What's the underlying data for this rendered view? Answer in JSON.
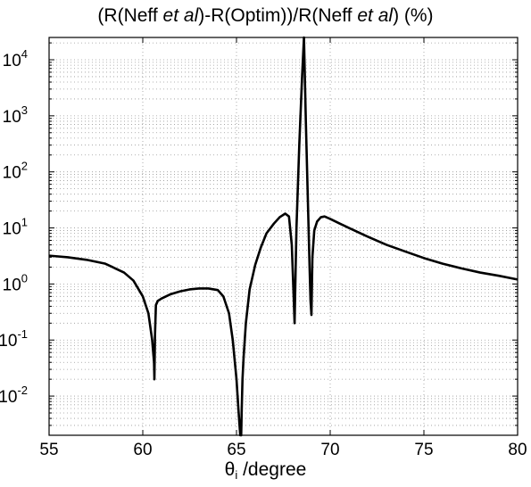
{
  "chart_data": {
    "type": "line",
    "title": {
      "open": "(R(Neff ",
      "italic1": "et al",
      "middle": ")-R(Optim))/R(Neff ",
      "italic2": "et al",
      "close": ") (%)"
    },
    "xlabel": {
      "symbol": "θ",
      "subscript": "i",
      "unit": " /degree"
    },
    "ylabel": "",
    "xlim": [
      55,
      80
    ],
    "ylim": [
      0.002,
      25000
    ],
    "yscale": "log",
    "grid": true,
    "x_ticks": [
      55,
      60,
      65,
      70,
      75,
      80
    ],
    "x_tick_labels": [
      "55",
      "60",
      "65",
      "70",
      "75",
      "80"
    ],
    "y_ticks": [
      {
        "value": 0.01,
        "base": "10",
        "exp": "-2"
      },
      {
        "value": 0.1,
        "base": "10",
        "exp": "-1"
      },
      {
        "value": 1,
        "base": "10",
        "exp": "0"
      },
      {
        "value": 10,
        "base": "10",
        "exp": "1"
      },
      {
        "value": 100,
        "base": "10",
        "exp": "2"
      },
      {
        "value": 1000,
        "base": "10",
        "exp": "3"
      },
      {
        "value": 10000,
        "base": "10",
        "exp": "4"
      }
    ],
    "series": [
      {
        "color": "#000000",
        "x": [
          55.0,
          56.0,
          57.0,
          58.0,
          59.0,
          59.5,
          60.0,
          60.3,
          60.5,
          60.6,
          60.62,
          60.65,
          60.7,
          60.8,
          61.0,
          61.5,
          62.0,
          62.5,
          63.0,
          63.5,
          64.0,
          64.3,
          64.6,
          64.8,
          65.0,
          65.1,
          65.2,
          65.25,
          65.28,
          65.32,
          65.38,
          65.5,
          65.7,
          66.0,
          66.3,
          66.6,
          67.0,
          67.3,
          67.6,
          67.8,
          67.95,
          68.05,
          68.1,
          68.15,
          68.2,
          68.35,
          68.5,
          68.6,
          68.7,
          68.8,
          68.9,
          68.95,
          69.0,
          69.05,
          69.15,
          69.3,
          69.5,
          69.7,
          70.0,
          70.5,
          71.0,
          72.0,
          73.0,
          74.0,
          75.0,
          76.0,
          77.0,
          78.0,
          79.0,
          80.0
        ],
        "y": [
          3.2,
          3.0,
          2.7,
          2.3,
          1.6,
          1.15,
          0.6,
          0.3,
          0.1,
          0.04,
          0.02,
          0.12,
          0.42,
          0.5,
          0.55,
          0.66,
          0.74,
          0.8,
          0.83,
          0.83,
          0.78,
          0.6,
          0.3,
          0.1,
          0.02,
          0.006,
          0.002,
          0.002,
          0.006,
          0.02,
          0.05,
          0.2,
          0.8,
          2.2,
          4.5,
          8.0,
          12.0,
          15.5,
          18.0,
          16.0,
          5.0,
          0.6,
          0.2,
          1.5,
          10.0,
          300,
          5000,
          25000,
          800,
          40,
          2.0,
          0.5,
          0.28,
          3.0,
          9.0,
          13.0,
          15.5,
          16.0,
          14.5,
          12.0,
          10.0,
          7.0,
          5.0,
          3.8,
          2.9,
          2.3,
          1.9,
          1.6,
          1.4,
          1.2
        ]
      }
    ]
  }
}
